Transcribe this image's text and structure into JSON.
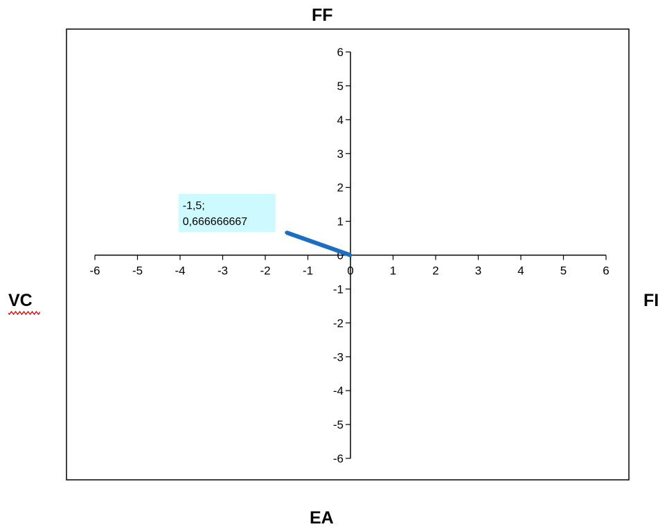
{
  "quadrant_labels": {
    "top": "FF",
    "bottom": "EA",
    "left": "VC",
    "right": "FI"
  },
  "colors": {
    "series": "#1a6fc0",
    "data_label_bg": "#ccfafe",
    "spellcheck": "#e00000"
  },
  "chart_data": {
    "type": "line",
    "title": "",
    "xlabel": "",
    "ylabel": "",
    "xlim": [
      -6,
      6
    ],
    "ylim": [
      -6,
      6
    ],
    "x_ticks": [
      "-6",
      "-5",
      "-4",
      "-3",
      "-2",
      "-1",
      "0",
      "1",
      "2",
      "3",
      "4",
      "5",
      "6"
    ],
    "y_ticks": [
      "-6",
      "-5",
      "-4",
      "-3",
      "-2",
      "-1",
      "0",
      "1",
      "2",
      "3",
      "4",
      "5",
      "6"
    ],
    "grid": false,
    "legend": "none",
    "series": [
      {
        "points": [
          {
            "x": -1.5,
            "y": 0.666666667
          },
          {
            "x": 0,
            "y": 0
          }
        ]
      }
    ],
    "data_label": {
      "line1": "-1,5;",
      "line2": "0,666666667"
    }
  }
}
